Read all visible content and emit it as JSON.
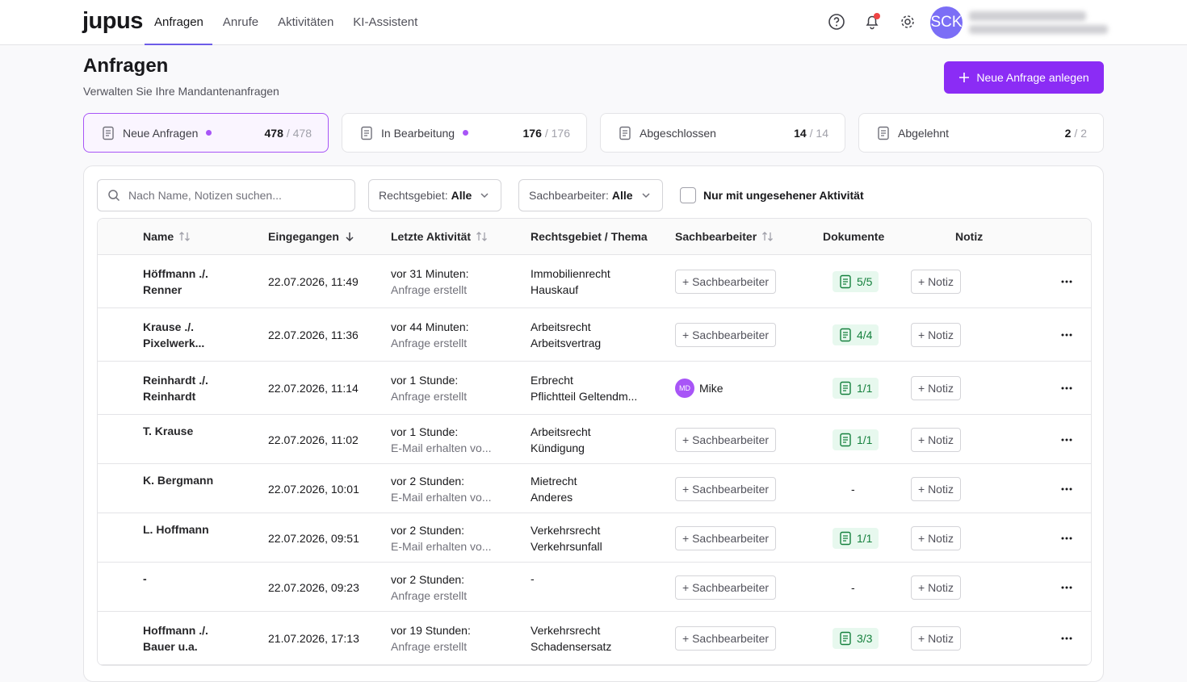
{
  "nav": {
    "logo": "jupus",
    "tabs": [
      "Anfragen",
      "Anrufe",
      "Aktivitäten",
      "KI-Assistent"
    ],
    "avatar": "SCK"
  },
  "header": {
    "title": "Anfragen",
    "subtitle": "Verwalten Sie Ihre Mandantenanfragen",
    "button": "Neue Anfrage anlegen"
  },
  "status_cards": [
    {
      "label": "Neue Anfragen",
      "dot": true,
      "count": "478",
      "total": "/ 478"
    },
    {
      "label": "In Bearbeitung",
      "dot": true,
      "count": "176",
      "total": "/ 176"
    },
    {
      "label": "Abgeschlossen",
      "dot": false,
      "count": "14",
      "total": "/ 14"
    },
    {
      "label": "Abgelehnt",
      "dot": false,
      "count": "2",
      "total": "/ 2"
    }
  ],
  "filters": {
    "search_placeholder": "Nach Name, Notizen suchen...",
    "area_label": "Rechtsgebiet:",
    "area_value": "Alle",
    "assignee_label": "Sachbearbeiter:",
    "assignee_value": "Alle",
    "checkbox": "Nur mit ungesehener Aktivität"
  },
  "table": {
    "columns": [
      "Name",
      "Eingegangen",
      "Letzte Aktivität",
      "Rechtsgebiet / Thema",
      "Sachbearbeiter",
      "Dokumente",
      "Notiz"
    ],
    "rows": [
      {
        "name": "Höffmann ./. Renner",
        "received": "22.07.2026, 11:49",
        "activity_time": "vor 31 Minuten:",
        "activity": "Anfrage erstellt",
        "area": "Immobilienrecht",
        "topic": "Hauskauf",
        "assignee": "+ Sachbearbeiter",
        "docs": "5/5",
        "note": "+ Notiz"
      },
      {
        "name": "Krause ./. Pixelwerk...",
        "received": "22.07.2026, 11:36",
        "activity_time": "vor 44 Minuten:",
        "activity": "Anfrage erstellt",
        "area": "Arbeitsrecht",
        "topic": "Arbeitsvertrag",
        "assignee": "+ Sachbearbeiter",
        "docs": "4/4",
        "note": "+ Notiz"
      },
      {
        "name": "Reinhardt ./. Reinhardt",
        "received": "22.07.2026, 11:14",
        "activity_time": "vor 1 Stunde:",
        "activity": "Anfrage erstellt",
        "area": "Erbrecht",
        "topic": "Pflichtteil Geltendm...",
        "assignee": {
          "initials": "MD",
          "name": "Mike"
        },
        "docs": "1/1",
        "note": "+ Notiz"
      },
      {
        "name": "T. Krause",
        "received": "22.07.2026, 11:02",
        "activity_time": "vor 1 Stunde:",
        "activity": "E-Mail erhalten vo...",
        "area": "Arbeitsrecht",
        "topic": "Kündigung",
        "assignee": "+ Sachbearbeiter",
        "docs": "1/1",
        "note": "+ Notiz"
      },
      {
        "name": "K. Bergmann",
        "received": "22.07.2026, 10:01",
        "activity_time": "vor 2 Stunden:",
        "activity": "E-Mail erhalten vo...",
        "area": "Mietrecht",
        "topic": "Anderes",
        "assignee": "+ Sachbearbeiter",
        "docs": "-",
        "note": "+ Notiz"
      },
      {
        "name": "L. Hoffmann",
        "received": "22.07.2026, 09:51",
        "activity_time": "vor 2 Stunden:",
        "activity": "E-Mail erhalten vo...",
        "area": "Verkehrsrecht",
        "topic": "Verkehrsunfall",
        "assignee": "+ Sachbearbeiter",
        "docs": "1/1",
        "note": "+ Notiz"
      },
      {
        "name": "-",
        "received": "22.07.2026, 09:23",
        "activity_time": "vor 2 Stunden:",
        "activity": "Anfrage erstellt",
        "area": "-",
        "assignee": "+ Sachbearbeiter",
        "docs": "-",
        "note": "+ Notiz"
      },
      {
        "name": "Hoffmann ./. Bauer u.a.",
        "received": "21.07.2026, 17:13",
        "activity_time": "vor 19 Stunden:",
        "activity": "Anfrage erstellt",
        "area": "Verkehrsrecht",
        "topic": "Schadensersatz",
        "assignee": "+ Sachbearbeiter",
        "docs": "3/3",
        "note": "+ Notiz"
      }
    ]
  }
}
